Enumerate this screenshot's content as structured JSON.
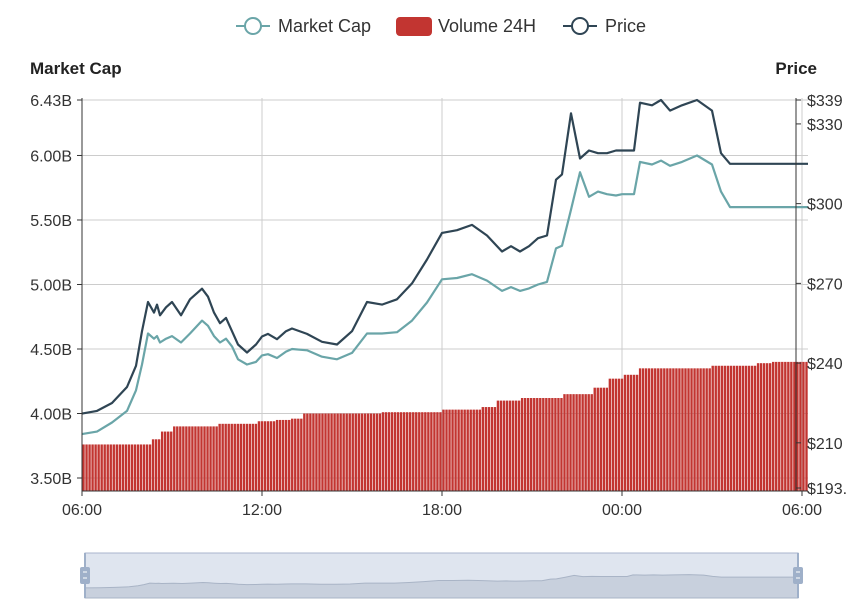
{
  "legend": [
    {
      "label": "Market Cap",
      "color": "#6aa5a8",
      "icon": "circle-line-icon"
    },
    {
      "label": "Volume 24H",
      "color": "#c23531",
      "icon": "rounded-rect-icon"
    },
    {
      "label": "Price",
      "color": "#2f4554",
      "icon": "circle-line-icon"
    }
  ],
  "chart_data": {
    "type": "line",
    "left_axis": {
      "title": "Market Cap",
      "range": [
        3.5,
        6.43
      ],
      "ticks": [
        "6.43B",
        "6.00B",
        "5.50B",
        "5.00B",
        "4.50B",
        "4.00B",
        "3.50B"
      ],
      "tick_values": [
        6.43,
        6.0,
        5.5,
        5.0,
        4.5,
        4.0,
        3.5
      ]
    },
    "right_axis": {
      "title": "Price",
      "range": [
        193,
        339
      ],
      "ticks": [
        "$339",
        "$330",
        "$300",
        "$270",
        "$240",
        "$210",
        "$193."
      ],
      "tick_values": [
        339,
        330,
        300,
        270,
        240,
        210,
        193
      ]
    },
    "x_axis": {
      "ticks": [
        "06:00",
        "12:00",
        "18:00",
        "00:00",
        "06:00"
      ],
      "tick_hours": [
        0,
        6,
        12,
        18,
        24
      ],
      "range_hours": [
        0,
        24.2
      ]
    },
    "grid": true,
    "legend_position": "top-center",
    "series": [
      {
        "name": "Market Cap",
        "color": "#6aa5a8",
        "x": [
          0,
          0.5,
          1.0,
          1.5,
          1.8,
          2.0,
          2.2,
          2.4,
          2.5,
          2.6,
          2.8,
          3.0,
          3.3,
          3.6,
          4.0,
          4.2,
          4.4,
          4.6,
          4.8,
          5.0,
          5.2,
          5.5,
          5.8,
          6.0,
          6.2,
          6.5,
          6.8,
          7.0,
          7.5,
          8.0,
          8.5,
          9.0,
          9.5,
          10.0,
          10.5,
          11.0,
          11.5,
          12.0,
          12.5,
          13.0,
          13.5,
          14.0,
          14.3,
          14.6,
          14.9,
          15.2,
          15.5,
          15.8,
          16.0,
          16.3,
          16.6,
          16.9,
          17.2,
          17.5,
          17.8,
          18.0,
          18.2,
          18.4,
          18.6,
          19.0,
          19.3,
          19.6,
          20.0,
          20.5,
          21.0,
          21.3,
          21.6,
          21.8,
          22.0,
          22.3,
          22.6,
          23.0,
          23.3,
          23.5,
          23.6,
          23.8,
          24.0,
          24.2
        ],
        "values": [
          3.84,
          3.86,
          3.93,
          4.02,
          4.18,
          4.38,
          4.62,
          4.58,
          4.6,
          4.55,
          4.58,
          4.6,
          4.55,
          4.62,
          4.72,
          4.68,
          4.6,
          4.55,
          4.58,
          4.52,
          4.42,
          4.38,
          4.4,
          4.45,
          4.46,
          4.43,
          4.48,
          4.5,
          4.49,
          4.44,
          4.42,
          4.47,
          4.62,
          4.62,
          4.63,
          4.72,
          4.86,
          5.04,
          5.05,
          5.08,
          5.03,
          4.95,
          4.98,
          4.95,
          4.97,
          5.0,
          5.02,
          5.28,
          5.3,
          5.58,
          5.87,
          5.68,
          5.72,
          5.7,
          5.69,
          5.7,
          5.7,
          5.7,
          5.95,
          5.93,
          5.96,
          5.92,
          5.95,
          6.0,
          5.93,
          5.72,
          5.6,
          5.6,
          5.6,
          5.6,
          5.6,
          5.6,
          5.6,
          5.6,
          5.6,
          5.6,
          5.6,
          5.6
        ]
      },
      {
        "name": "Price",
        "color": "#2f4554",
        "x": [
          0,
          0.5,
          1.0,
          1.5,
          1.8,
          2.0,
          2.2,
          2.4,
          2.5,
          2.6,
          2.8,
          3.0,
          3.3,
          3.6,
          4.0,
          4.2,
          4.4,
          4.6,
          4.8,
          5.0,
          5.2,
          5.5,
          5.8,
          6.0,
          6.2,
          6.5,
          6.8,
          7.0,
          7.5,
          8.0,
          8.5,
          9.0,
          9.5,
          10.0,
          10.5,
          11.0,
          11.5,
          12.0,
          12.5,
          13.0,
          13.5,
          14.0,
          14.3,
          14.6,
          14.9,
          15.2,
          15.5,
          15.8,
          16.0,
          16.3,
          16.6,
          16.9,
          17.2,
          17.5,
          17.8,
          18.0,
          18.2,
          18.4,
          18.6,
          19.0,
          19.3,
          19.6,
          20.0,
          20.5,
          21.0,
          21.3,
          21.6,
          21.8,
          22.0,
          22.3,
          22.6,
          23.0,
          23.3,
          23.5,
          23.6,
          23.8,
          24.0,
          24.2
        ],
        "values": [
          221,
          222,
          225,
          231,
          239,
          252,
          263,
          259,
          262,
          258,
          261,
          263,
          258,
          264,
          268,
          265,
          259,
          255,
          257,
          252,
          247,
          244,
          247,
          250,
          251,
          249,
          252,
          253,
          251,
          248,
          247,
          252,
          263,
          262,
          264,
          270,
          279,
          289,
          290,
          292,
          288,
          282,
          284,
          282,
          284,
          287,
          288,
          309,
          311,
          334,
          317,
          320,
          319,
          319,
          320,
          320,
          320,
          320,
          338,
          337,
          339,
          335,
          337,
          339,
          335,
          319,
          315,
          315,
          315,
          315,
          315,
          315,
          315,
          315,
          315,
          315,
          315,
          315
        ]
      },
      {
        "name": "Volume 24H",
        "color": "#c23531",
        "type": "bar",
        "x": [
          0,
          2.3,
          2.6,
          3.0,
          4.5,
          5.8,
          6.5,
          7.0,
          7.4,
          10.0,
          12.0,
          13.3,
          13.8,
          14.6,
          16.0,
          17.0,
          17.5,
          18.0,
          18.6,
          21.0,
          22.5,
          23.0,
          24.2
        ],
        "values": [
          3.76,
          3.8,
          3.86,
          3.9,
          3.92,
          3.94,
          3.95,
          3.96,
          4.0,
          4.01,
          4.03,
          4.05,
          4.1,
          4.12,
          4.15,
          4.2,
          4.27,
          4.3,
          4.35,
          4.37,
          4.39,
          4.4,
          4.4
        ]
      }
    ]
  },
  "colors": {
    "grid": "#cccccc",
    "axis": "#333333",
    "zoom_fill": "#dfe5ef",
    "zoom_border": "#a8b4cc",
    "zoom_handle": "#9fb0c9"
  }
}
